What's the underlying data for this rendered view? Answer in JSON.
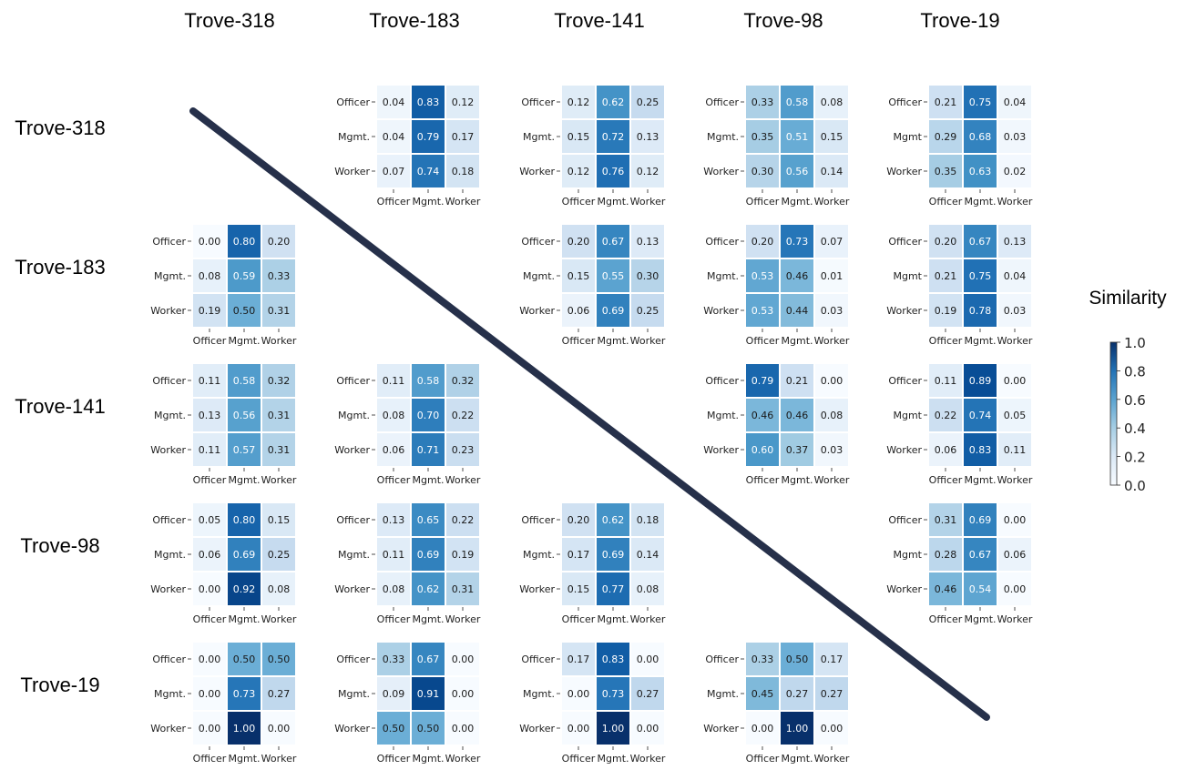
{
  "chart_data": {
    "type": "heatmap",
    "title": "",
    "row_labels": [
      "Trove-318",
      "Trove-183",
      "Trove-141",
      "Trove-98",
      "Trove-19"
    ],
    "col_labels": [
      "Trove-318",
      "Trove-183",
      "Trove-141",
      "Trove-98",
      "Trove-19"
    ],
    "cell_xticklabels": [
      "Officer",
      "Mgmt.",
      "Worker"
    ],
    "colorbar": {
      "label": "Similarity",
      "min": 0.0,
      "max": 1.0,
      "ticks": [
        "0.0",
        "0.2",
        "0.4",
        "0.6",
        "0.8",
        "1.0"
      ]
    },
    "diagonal_line": true,
    "grid": false,
    "heatmaps": [
      {
        "row": 0,
        "col": 1,
        "ylabels": [
          "Officer",
          "Mgmt.",
          "Worker"
        ],
        "values": [
          [
            0.04,
            0.83,
            0.12
          ],
          [
            0.04,
            0.79,
            0.17
          ],
          [
            0.07,
            0.74,
            0.18
          ]
        ]
      },
      {
        "row": 0,
        "col": 2,
        "ylabels": [
          "Officer",
          "Mgmt.",
          "Worker"
        ],
        "values": [
          [
            0.12,
            0.62,
            0.25
          ],
          [
            0.15,
            0.72,
            0.13
          ],
          [
            0.12,
            0.76,
            0.12
          ]
        ]
      },
      {
        "row": 0,
        "col": 3,
        "ylabels": [
          "Officer",
          "Mgmt.",
          "Worker"
        ],
        "values": [
          [
            0.33,
            0.58,
            0.08
          ],
          [
            0.35,
            0.51,
            0.15
          ],
          [
            0.3,
            0.56,
            0.14
          ]
        ]
      },
      {
        "row": 0,
        "col": 4,
        "ylabels": [
          "Officer",
          "Mgmt",
          "Worker"
        ],
        "values": [
          [
            0.21,
            0.75,
            0.04
          ],
          [
            0.29,
            0.68,
            0.03
          ],
          [
            0.35,
            0.63,
            0.02
          ]
        ]
      },
      {
        "row": 1,
        "col": 0,
        "ylabels": [
          "Officer",
          "Mgmt.",
          "Worker"
        ],
        "values": [
          [
            0.0,
            0.8,
            0.2
          ],
          [
            0.08,
            0.59,
            0.33
          ],
          [
            0.19,
            0.5,
            0.31
          ]
        ]
      },
      {
        "row": 1,
        "col": 2,
        "ylabels": [
          "Officer",
          "Mgmt.",
          "Worker"
        ],
        "values": [
          [
            0.2,
            0.67,
            0.13
          ],
          [
            0.15,
            0.55,
            0.3
          ],
          [
            0.06,
            0.69,
            0.25
          ]
        ]
      },
      {
        "row": 1,
        "col": 3,
        "ylabels": [
          "Officer",
          "Mgmt.",
          "Worker"
        ],
        "values": [
          [
            0.2,
            0.73,
            0.07
          ],
          [
            0.53,
            0.46,
            0.01
          ],
          [
            0.53,
            0.44,
            0.03
          ]
        ]
      },
      {
        "row": 1,
        "col": 4,
        "ylabels": [
          "Officer",
          "Mgmt",
          "Worker"
        ],
        "values": [
          [
            0.2,
            0.67,
            0.13
          ],
          [
            0.21,
            0.75,
            0.04
          ],
          [
            0.19,
            0.78,
            0.03
          ]
        ]
      },
      {
        "row": 2,
        "col": 0,
        "ylabels": [
          "Officer",
          "Mgmt.",
          "Worker"
        ],
        "values": [
          [
            0.11,
            0.58,
            0.32
          ],
          [
            0.13,
            0.56,
            0.31
          ],
          [
            0.11,
            0.57,
            0.31
          ]
        ]
      },
      {
        "row": 2,
        "col": 1,
        "ylabels": [
          "Officer",
          "Mgmt.",
          "Worker"
        ],
        "values": [
          [
            0.11,
            0.58,
            0.32
          ],
          [
            0.08,
            0.7,
            0.22
          ],
          [
            0.06,
            0.71,
            0.23
          ]
        ]
      },
      {
        "row": 2,
        "col": 3,
        "ylabels": [
          "Officer",
          "Mgmt.",
          "Worker"
        ],
        "values": [
          [
            0.79,
            0.21,
            0.0
          ],
          [
            0.46,
            0.46,
            0.08
          ],
          [
            0.6,
            0.37,
            0.03
          ]
        ]
      },
      {
        "row": 2,
        "col": 4,
        "ylabels": [
          "Officer",
          "Mgmt",
          "Worker"
        ],
        "values": [
          [
            0.11,
            0.89,
            0.0
          ],
          [
            0.22,
            0.74,
            0.05
          ],
          [
            0.06,
            0.83,
            0.11
          ]
        ]
      },
      {
        "row": 3,
        "col": 0,
        "ylabels": [
          "Officer",
          "Mgmt.",
          "Worker"
        ],
        "values": [
          [
            0.05,
            0.8,
            0.15
          ],
          [
            0.06,
            0.69,
            0.25
          ],
          [
            0.0,
            0.92,
            0.08
          ]
        ]
      },
      {
        "row": 3,
        "col": 1,
        "ylabels": [
          "Officer",
          "Mgmt.",
          "Worker"
        ],
        "values": [
          [
            0.13,
            0.65,
            0.22
          ],
          [
            0.11,
            0.69,
            0.19
          ],
          [
            0.08,
            0.62,
            0.31
          ]
        ]
      },
      {
        "row": 3,
        "col": 2,
        "ylabels": [
          "Officer",
          "Mgmt.",
          "Worker"
        ],
        "values": [
          [
            0.2,
            0.62,
            0.18
          ],
          [
            0.17,
            0.69,
            0.14
          ],
          [
            0.15,
            0.77,
            0.08
          ]
        ]
      },
      {
        "row": 3,
        "col": 4,
        "ylabels": [
          "Officer",
          "Mgmt",
          "Worker"
        ],
        "values": [
          [
            0.31,
            0.69,
            0.0
          ],
          [
            0.28,
            0.67,
            0.06
          ],
          [
            0.46,
            0.54,
            0.0
          ]
        ]
      },
      {
        "row": 4,
        "col": 0,
        "ylabels": [
          "Officer",
          "Mgmt.",
          "Worker"
        ],
        "values": [
          [
            0.0,
            0.5,
            0.5
          ],
          [
            0.0,
            0.73,
            0.27
          ],
          [
            0.0,
            1.0,
            0.0
          ]
        ]
      },
      {
        "row": 4,
        "col": 1,
        "ylabels": [
          "Officer",
          "Mgmt.",
          "Worker"
        ],
        "values": [
          [
            0.33,
            0.67,
            0.0
          ],
          [
            0.09,
            0.91,
            0.0
          ],
          [
            0.5,
            0.5,
            0.0
          ]
        ]
      },
      {
        "row": 4,
        "col": 2,
        "ylabels": [
          "Officer",
          "Mgmt.",
          "Worker"
        ],
        "values": [
          [
            0.17,
            0.83,
            0.0
          ],
          [
            0.0,
            0.73,
            0.27
          ],
          [
            0.0,
            1.0,
            0.0
          ]
        ]
      },
      {
        "row": 4,
        "col": 3,
        "ylabels": [
          "Officer",
          "Mgmt.",
          "Worker"
        ],
        "values": [
          [
            0.33,
            0.5,
            0.17
          ],
          [
            0.45,
            0.27,
            0.27
          ],
          [
            0.0,
            1.0,
            0.0
          ]
        ]
      }
    ]
  }
}
